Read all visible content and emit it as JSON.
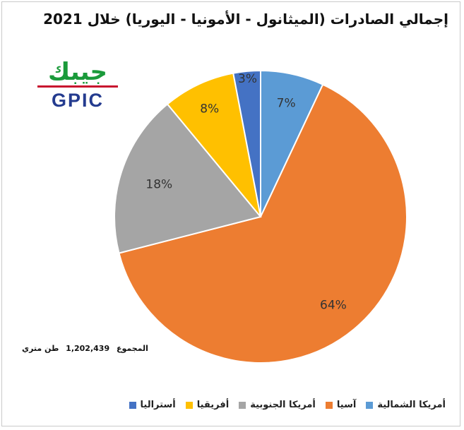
{
  "chart_data": {
    "type": "pie",
    "title": "إجمالي الصادرات (الميثانول - الأمونيا - اليوريا) خلال 2021",
    "slices": [
      {
        "name": "أمريكا الشمالية",
        "value": 7,
        "label": "7%",
        "color": "#5b9bd5"
      },
      {
        "name": "آسيا",
        "value": 64,
        "label": "64%",
        "color": "#ed7d31"
      },
      {
        "name": "أمريكا الجنوبية",
        "value": 18,
        "label": "18%",
        "color": "#a5a5a5"
      },
      {
        "name": "أفريقيا",
        "value": 8,
        "label": "8%",
        "color": "#ffc000"
      },
      {
        "name": "أستراليا",
        "value": 3,
        "label": "3%",
        "color": "#4472c4"
      }
    ],
    "legend_position": "bottom"
  },
  "total": {
    "label": "المجموع",
    "value": "1,202,439",
    "unit": "طن متري"
  },
  "logo": {
    "arabic": "جيبك",
    "english": "GPIC"
  }
}
